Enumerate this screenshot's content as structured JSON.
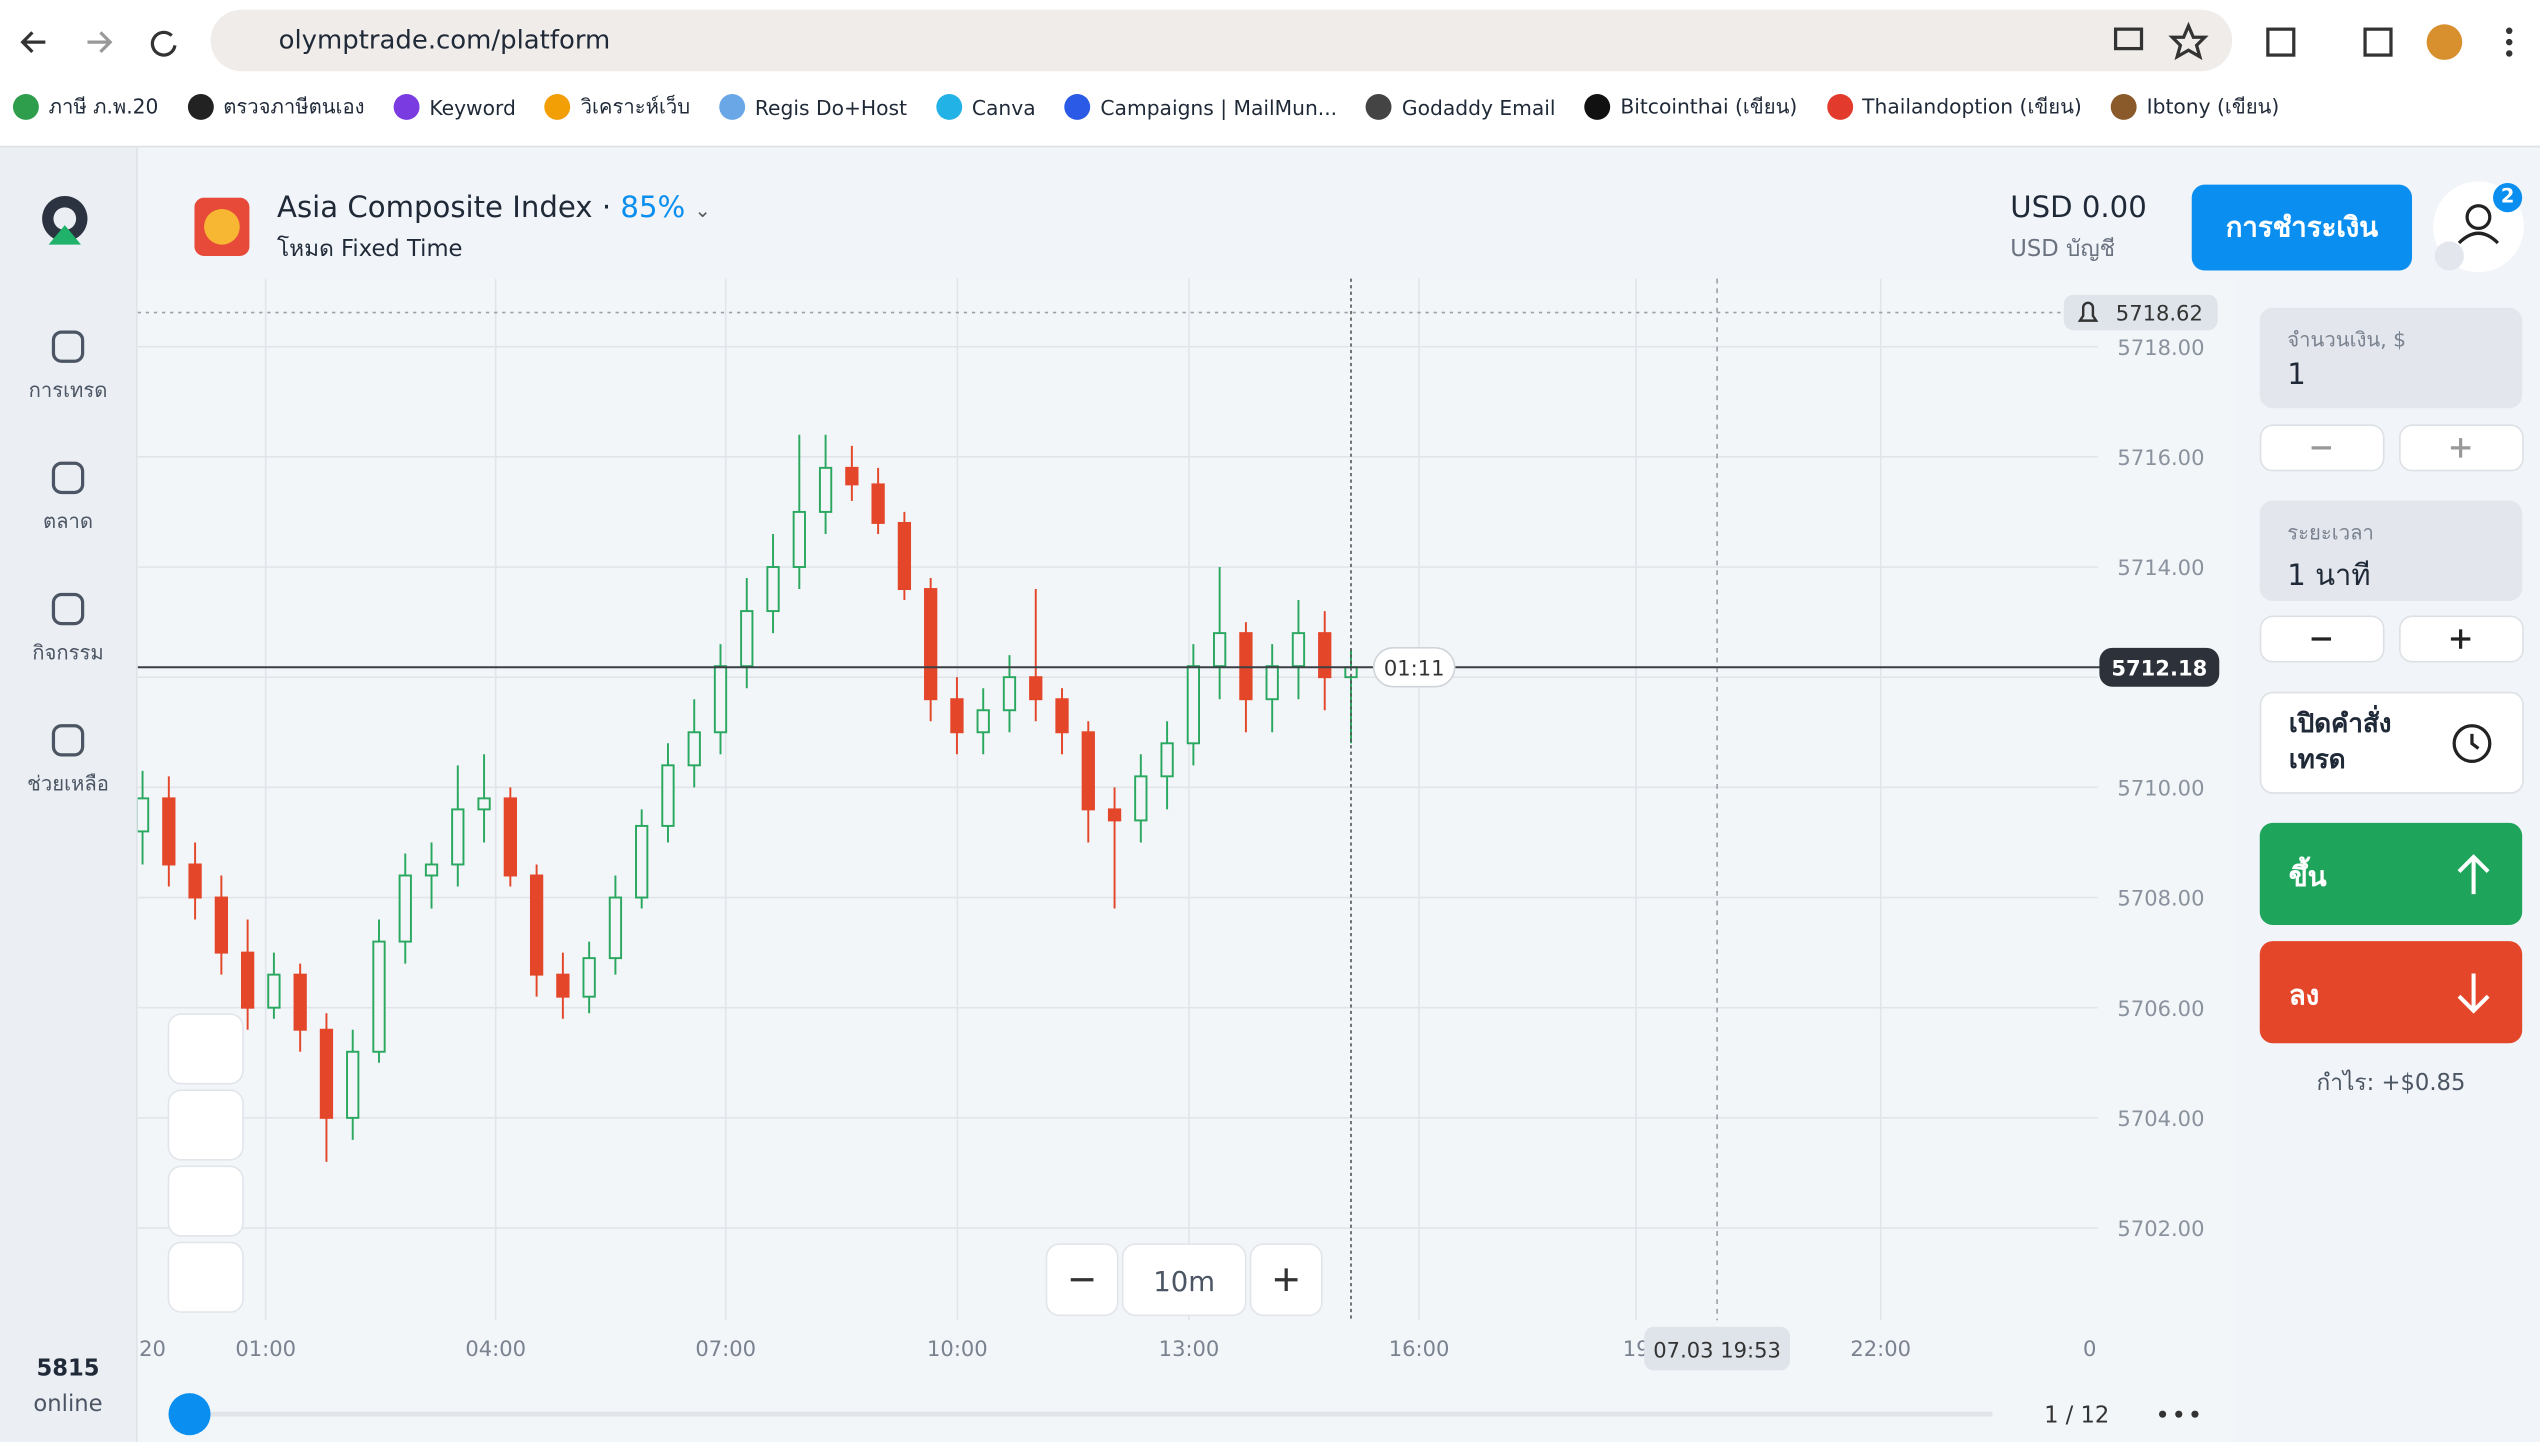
{
  "browser": {
    "url": "olymptrade.com/platform",
    "bookmarks": [
      "ภาษี ภ.พ.20",
      "ตรวจภาษีตนเอง",
      "Keyword",
      "วิเคราะห์เว็บ",
      "Regis Do+Host",
      "Canva",
      "Campaigns | MailMun...",
      "Godaddy Email",
      "Bitcointhai (เขียน)",
      "Thailandoption (เขียน)",
      "Ibtony (เขียน)"
    ]
  },
  "sidebar": {
    "items": [
      "การเทรด",
      "ตลาด",
      "กิจกรรม",
      "ช่วยเหลือ"
    ],
    "online_count": "5815",
    "online_label": "online"
  },
  "header": {
    "asset": "Asia Composite Index",
    "separator": "·",
    "payout": "85%",
    "mode": "โหมด Fixed Time",
    "balance": "USD 0.00",
    "account": "USD บัญชี",
    "payment_button": "การชำระเงิน",
    "notifications": "2"
  },
  "chart_data": {
    "type": "candlestick",
    "ylim": [
      5701.2,
      5718.7
    ],
    "yticks": [
      {
        "value": 5718,
        "label": "5718.00"
      },
      {
        "value": 5716,
        "label": "5716.00"
      },
      {
        "value": 5714,
        "label": "5714.00"
      },
      {
        "value": 5712,
        "label": "5712.00"
      },
      {
        "value": 5710,
        "label": "5710.00"
      },
      {
        "value": 5708,
        "label": "5708.00"
      },
      {
        "value": 5706,
        "label": "5706.00"
      },
      {
        "value": 5704,
        "label": "5704.00"
      },
      {
        "value": 5702,
        "label": "5702.00"
      }
    ],
    "xticks": [
      ":20",
      "01:00",
      "04:00",
      "07:00",
      "10:00",
      "13:00",
      "16:00",
      "19",
      "22:00",
      "0"
    ],
    "candles": [
      [
        5709.2,
        5710.3,
        5708.6,
        5709.8
      ],
      [
        5709.8,
        5710.2,
        5708.2,
        5708.6
      ],
      [
        5708.6,
        5709.0,
        5707.6,
        5708.0
      ],
      [
        5708.0,
        5708.4,
        5706.6,
        5707.0
      ],
      [
        5707.0,
        5707.6,
        5705.6,
        5706.0
      ],
      [
        5706.0,
        5707.0,
        5705.8,
        5706.6
      ],
      [
        5706.6,
        5706.8,
        5705.2,
        5705.6
      ],
      [
        5705.6,
        5705.9,
        5703.2,
        5704.0
      ],
      [
        5704.0,
        5705.6,
        5703.6,
        5705.2
      ],
      [
        5705.2,
        5707.6,
        5705.0,
        5707.2
      ],
      [
        5707.2,
        5708.8,
        5706.8,
        5708.4
      ],
      [
        5708.4,
        5709.0,
        5707.8,
        5708.6
      ],
      [
        5708.6,
        5710.4,
        5708.2,
        5709.6
      ],
      [
        5709.6,
        5710.6,
        5709.0,
        5709.8
      ],
      [
        5709.8,
        5710.0,
        5708.2,
        5708.4
      ],
      [
        5708.4,
        5708.6,
        5706.2,
        5706.6
      ],
      [
        5706.6,
        5707.0,
        5705.8,
        5706.2
      ],
      [
        5706.2,
        5707.2,
        5705.9,
        5706.9
      ],
      [
        5706.9,
        5708.4,
        5706.6,
        5708.0
      ],
      [
        5708.0,
        5709.6,
        5707.8,
        5709.3
      ],
      [
        5709.3,
        5710.8,
        5709.0,
        5710.4
      ],
      [
        5710.4,
        5711.6,
        5710.0,
        5711.0
      ],
      [
        5711.0,
        5712.6,
        5710.6,
        5712.2
      ],
      [
        5712.2,
        5713.8,
        5711.8,
        5713.2
      ],
      [
        5713.2,
        5714.6,
        5712.8,
        5714.0
      ],
      [
        5714.0,
        5716.4,
        5713.6,
        5715.0
      ],
      [
        5715.0,
        5716.4,
        5714.6,
        5715.8
      ],
      [
        5715.8,
        5716.2,
        5715.2,
        5715.5
      ],
      [
        5715.5,
        5715.8,
        5714.6,
        5714.8
      ],
      [
        5714.8,
        5715.0,
        5713.4,
        5713.6
      ],
      [
        5713.6,
        5713.8,
        5711.2,
        5711.6
      ],
      [
        5711.6,
        5712.0,
        5710.6,
        5711.0
      ],
      [
        5711.0,
        5711.8,
        5710.6,
        5711.4
      ],
      [
        5711.4,
        5712.4,
        5711.0,
        5712.0
      ],
      [
        5712.0,
        5713.6,
        5711.2,
        5711.6
      ],
      [
        5711.6,
        5711.8,
        5710.6,
        5711.0
      ],
      [
        5711.0,
        5711.2,
        5709.0,
        5709.6
      ],
      [
        5709.6,
        5710.0,
        5707.8,
        5709.4
      ],
      [
        5709.4,
        5710.6,
        5709.0,
        5710.2
      ],
      [
        5710.2,
        5711.2,
        5709.6,
        5710.8
      ],
      [
        5710.8,
        5712.6,
        5710.4,
        5712.2
      ],
      [
        5712.2,
        5714.0,
        5711.6,
        5712.8
      ],
      [
        5712.8,
        5713.0,
        5711.0,
        5711.6
      ],
      [
        5711.6,
        5712.6,
        5711.0,
        5712.2
      ],
      [
        5712.2,
        5713.4,
        5711.6,
        5712.8
      ],
      [
        5712.8,
        5713.2,
        5711.4,
        5712.0
      ],
      [
        5712.0,
        5712.5,
        5710.8,
        5712.18
      ]
    ],
    "up_color": "#2aa860",
    "down_color": "#e4462a",
    "current_price": 5712.18,
    "alert_price": 5718.62,
    "timer": "01:11",
    "crosshair_time": "07.03 19:53",
    "zoom": "10m",
    "page": "1 / 12"
  },
  "trade_panel": {
    "amount_label": "จำนวนเงิน, $",
    "amount": "1",
    "duration_label": "ระยะเวลา",
    "duration": "1 นาที",
    "pending_order": "เปิดคำสั่งเทรด",
    "up": "ขึ้น",
    "down": "ลง",
    "profit": "กำไร: +$0.85"
  }
}
